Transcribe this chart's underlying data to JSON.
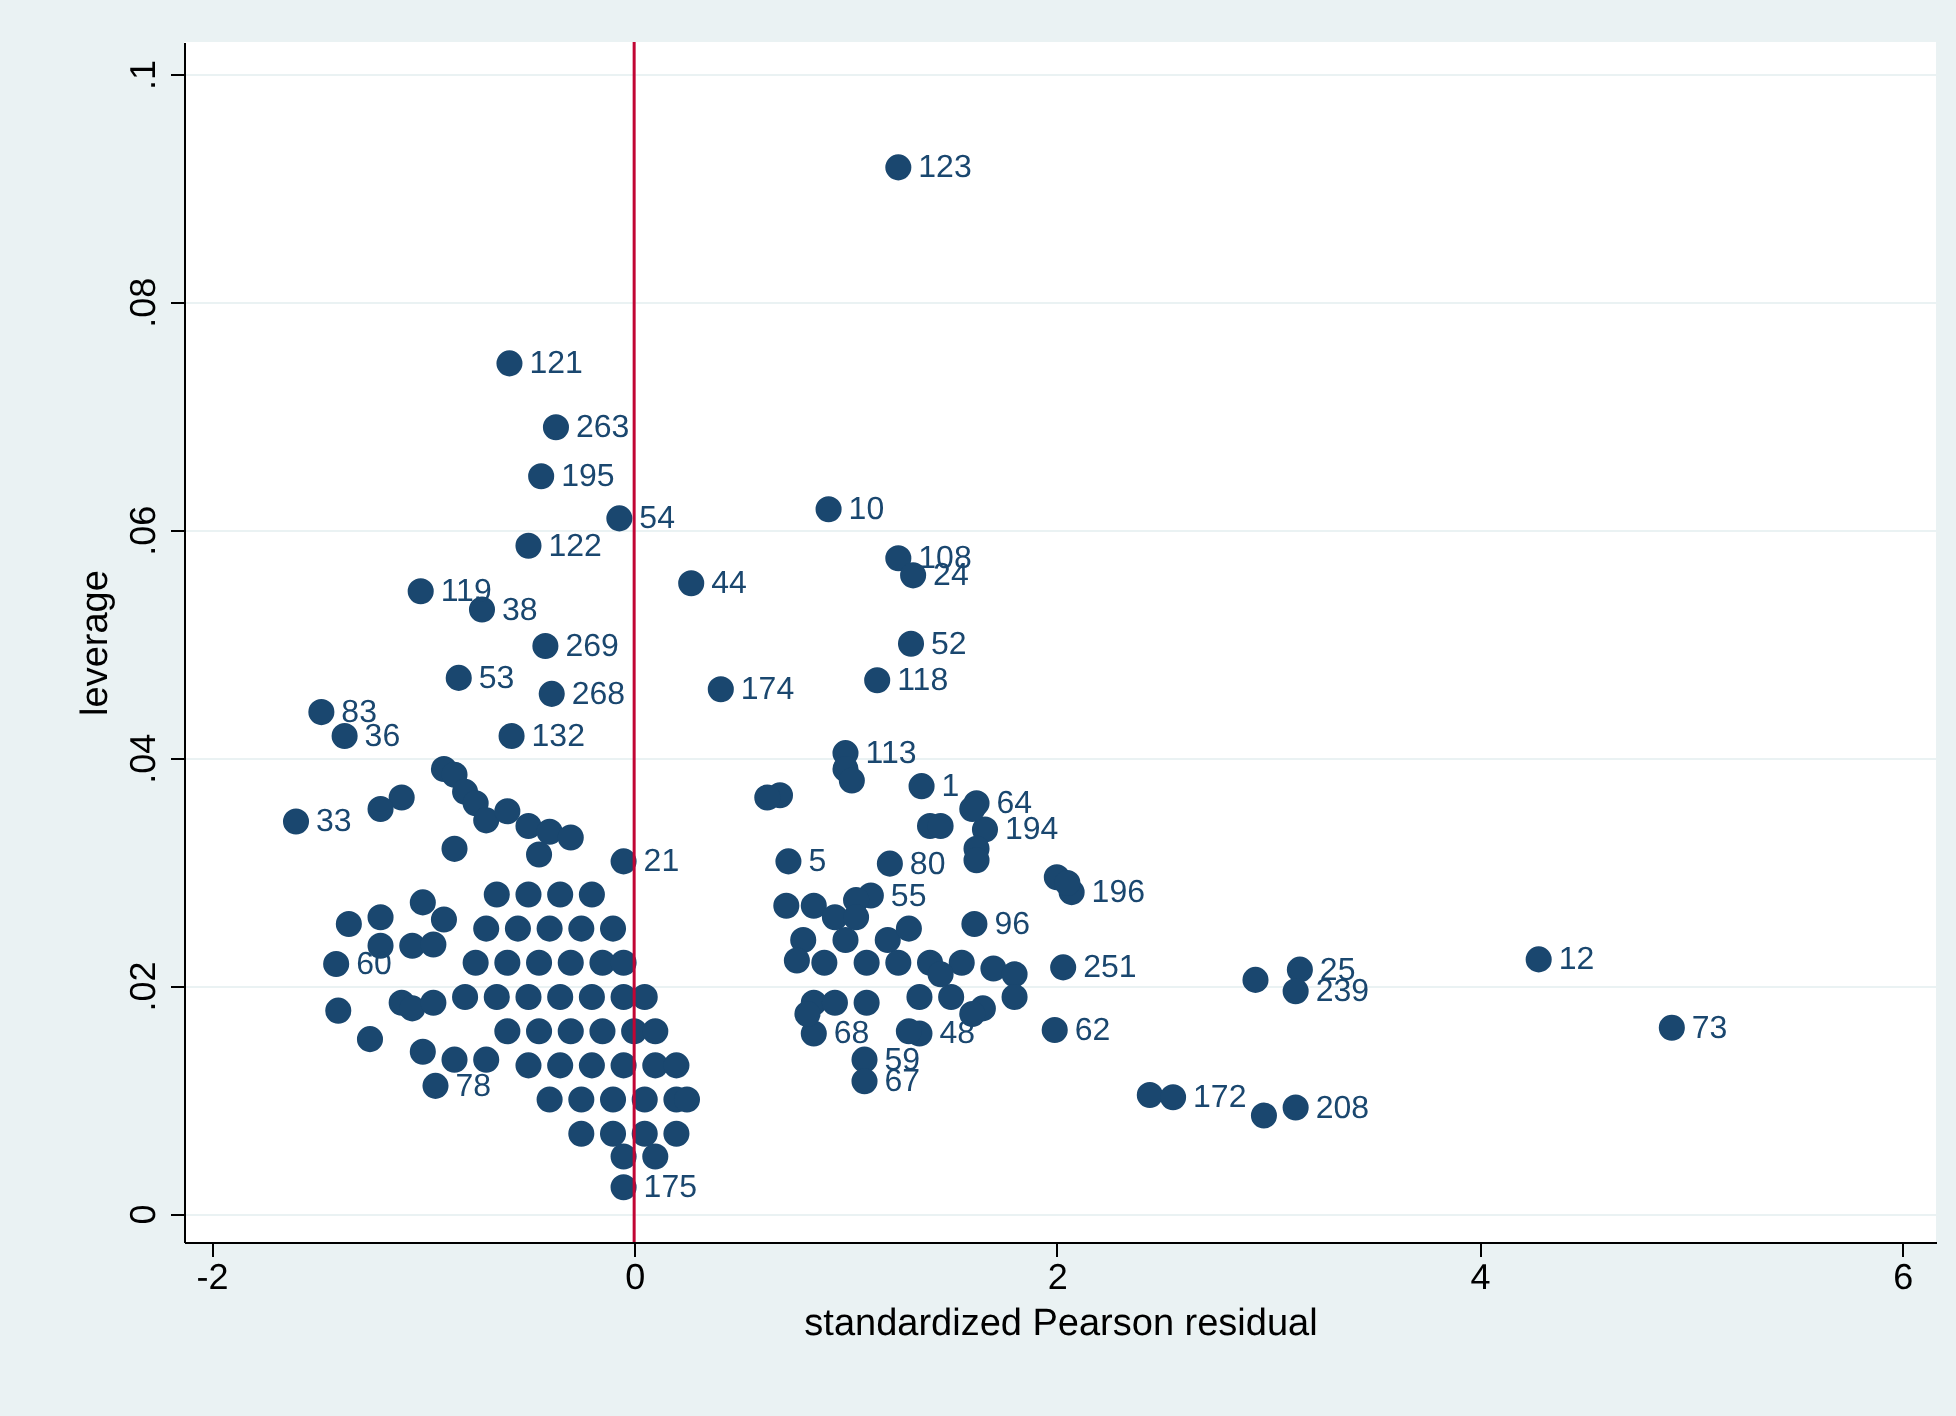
{
  "chart_data": {
    "type": "scatter",
    "xlabel": "standardized Pearson residual",
    "ylabel": "leverage",
    "xlim": [
      -2.13,
      6.16
    ],
    "ylim": [
      -0.0025,
      0.1028
    ],
    "xticks": [
      -2,
      0,
      2,
      4,
      6
    ],
    "yticks": [
      0,
      {
        "value": 0.02,
        "label": ".02"
      },
      {
        "value": 0.04,
        "label": ".04"
      },
      {
        "value": 0.06,
        "label": ".06"
      },
      {
        "value": 0.08,
        "label": ".08"
      },
      {
        "value": 0.1,
        "label": ".1"
      }
    ],
    "grid": "y",
    "marker": "circle",
    "ref_lines": [
      {
        "axis": "x",
        "value": 0,
        "color": "#c10534"
      }
    ],
    "annotations": [
      {
        "text": "123",
        "x": 1.25,
        "y": 0.0918
      },
      {
        "text": "121",
        "x": -0.59,
        "y": 0.0746
      },
      {
        "text": "263",
        "x": -0.37,
        "y": 0.069
      },
      {
        "text": "195",
        "x": -0.44,
        "y": 0.0647
      },
      {
        "text": "54",
        "x": -0.07,
        "y": 0.061
      },
      {
        "text": "10",
        "x": 0.92,
        "y": 0.0618
      },
      {
        "text": "108",
        "x": 1.25,
        "y": 0.0575
      },
      {
        "text": "24",
        "x": 1.32,
        "y": 0.056
      },
      {
        "text": "122",
        "x": -0.5,
        "y": 0.0586
      },
      {
        "text": "119",
        "x": -1.01,
        "y": 0.0546
      },
      {
        "text": "38",
        "x": -0.72,
        "y": 0.053
      },
      {
        "text": "44",
        "x": 0.27,
        "y": 0.0553
      },
      {
        "text": "269",
        "x": -0.42,
        "y": 0.0498
      },
      {
        "text": "52",
        "x": 1.31,
        "y": 0.05
      },
      {
        "text": "53",
        "x": -0.83,
        "y": 0.047
      },
      {
        "text": "268",
        "x": -0.39,
        "y": 0.0456
      },
      {
        "text": "118",
        "x": 1.15,
        "y": 0.0468
      },
      {
        "text": "174",
        "x": 0.41,
        "y": 0.046
      },
      {
        "text": "83",
        "x": -1.48,
        "y": 0.044
      },
      {
        "text": "36",
        "x": -1.37,
        "y": 0.0419
      },
      {
        "text": "132",
        "x": -0.58,
        "y": 0.0419
      },
      {
        "text": "33",
        "x": -1.6,
        "y": 0.0344
      },
      {
        "text": "21",
        "x": -0.05,
        "y": 0.0309
      },
      {
        "text": "175",
        "x": -0.05,
        "y": 0.0023
      },
      {
        "text": "60",
        "x": -1.41,
        "y": 0.0219
      },
      {
        "text": "78",
        "x": -0.94,
        "y": 0.0112
      },
      {
        "text": "5",
        "x": 0.73,
        "y": 0.0309
      },
      {
        "text": "80",
        "x": 1.21,
        "y": 0.0307
      },
      {
        "text": "12",
        "x": 4.28,
        "y": 0.0223
      },
      {
        "text": "73",
        "x": 4.91,
        "y": 0.0163
      },
      {
        "text": "25",
        "x": 3.15,
        "y": 0.0214
      },
      {
        "text": "239",
        "x": 3.13,
        "y": 0.0195
      },
      {
        "text": "62",
        "x": 1.99,
        "y": 0.0161
      },
      {
        "text": "251",
        "x": 2.03,
        "y": 0.0216
      },
      {
        "text": "196",
        "x": 2.07,
        "y": 0.0282
      },
      {
        "text": "64",
        "x": 1.62,
        "y": 0.036
      },
      {
        "text": "194",
        "x": 1.66,
        "y": 0.0337
      },
      {
        "text": "113",
        "x": 1.0,
        "y": 0.0404
      },
      {
        "text": "1",
        "x": 1.36,
        "y": 0.0375
      },
      {
        "text": "96",
        "x": 1.61,
        "y": 0.0254
      },
      {
        "text": "59",
        "x": 1.09,
        "y": 0.0135
      },
      {
        "text": "67",
        "x": 1.09,
        "y": 0.0116
      },
      {
        "text": "172",
        "x": 2.55,
        "y": 0.0102
      },
      {
        "text": "208",
        "x": 3.13,
        "y": 0.0093
      },
      {
        "text": "55",
        "x": 1.12,
        "y": 0.0279
      },
      {
        "text": "48",
        "x": 1.35,
        "y": 0.0158
      },
      {
        "text": "68",
        "x": 0.85,
        "y": 0.0158
      }
    ],
    "series": [
      {
        "color": "#1a476f",
        "x": [
          1.25,
          -0.59,
          -0.37,
          -0.44,
          -0.07,
          0.92,
          1.25,
          1.32,
          -0.5,
          -1.01,
          -0.72,
          0.27,
          -0.42,
          1.31,
          -0.83,
          -0.39,
          1.15,
          0.41,
          -1.48,
          -1.37,
          -0.58,
          -1.6,
          -0.05,
          -0.05,
          -1.41,
          -0.94,
          0.73,
          1.21,
          4.28,
          4.91,
          3.15,
          3.13,
          2.94,
          1.99,
          2.03,
          2.07,
          1.62,
          1.66,
          1.0,
          1.36,
          0.69,
          1.61,
          1.09,
          1.09,
          2.44,
          2.55,
          2.98,
          3.13,
          1.12,
          1.35,
          0.85,
          -1.35,
          -1.2,
          -1.0,
          -0.9,
          -1.2,
          -1.05,
          -0.95,
          -1.4,
          -1.25,
          -1.1,
          -1.05,
          -0.95,
          -1.0,
          -0.85,
          -0.7,
          -1.1,
          -1.2,
          -0.9,
          -0.85,
          -0.8,
          -0.75,
          -0.7,
          -0.6,
          -0.5,
          -0.4,
          -0.3,
          -0.45,
          -0.85,
          -0.65,
          -0.5,
          -0.35,
          -0.2,
          -0.7,
          -0.55,
          -0.4,
          -0.25,
          -0.1,
          -0.75,
          -0.6,
          -0.45,
          -0.3,
          -0.15,
          -0.05,
          -0.8,
          -0.65,
          -0.5,
          -0.35,
          -0.2,
          -0.05,
          0.05,
          -0.6,
          -0.45,
          -0.3,
          -0.15,
          0.0,
          0.1,
          -0.5,
          -0.35,
          -0.2,
          -0.05,
          0.1,
          0.2,
          -0.4,
          -0.25,
          -0.1,
          0.05,
          0.2,
          0.25,
          -0.25,
          -0.1,
          0.05,
          0.2,
          -0.05,
          0.1,
          0.72,
          0.85,
          0.95,
          1.05,
          0.8,
          1.0,
          1.2,
          1.3,
          0.77,
          0.9,
          1.1,
          1.25,
          1.4,
          1.55,
          1.7,
          1.8,
          1.35,
          1.5,
          1.65,
          1.8,
          0.85,
          0.95,
          1.1,
          0.82,
          1.3,
          1.6,
          1.0,
          1.03,
          1.4,
          1.45,
          1.62,
          1.62,
          2.0,
          2.05,
          0.63,
          1.6,
          1.05,
          1.45
        ],
        "values": [
          0.0918,
          0.0746,
          0.069,
          0.0647,
          0.061,
          0.0618,
          0.0575,
          0.056,
          0.0586,
          0.0546,
          0.053,
          0.0553,
          0.0498,
          0.05,
          0.047,
          0.0456,
          0.0468,
          0.046,
          0.044,
          0.0419,
          0.0419,
          0.0344,
          0.0309,
          0.0023,
          0.0219,
          0.0112,
          0.0309,
          0.0307,
          0.0223,
          0.0163,
          0.0214,
          0.0195,
          0.0205,
          0.0161,
          0.0216,
          0.0282,
          0.036,
          0.0337,
          0.0404,
          0.0375,
          0.0367,
          0.0254,
          0.0135,
          0.0116,
          0.0104,
          0.0102,
          0.0086,
          0.0093,
          0.0279,
          0.0158,
          0.0158,
          0.0254,
          0.026,
          0.0273,
          0.0258,
          0.0235,
          0.0235,
          0.0236,
          0.0178,
          0.0153,
          0.0185,
          0.018,
          0.0185,
          0.0142,
          0.0135,
          0.0135,
          0.0365,
          0.0355,
          0.039,
          0.0385,
          0.037,
          0.036,
          0.0345,
          0.0353,
          0.034,
          0.0335,
          0.033,
          0.0315,
          0.032,
          0.028,
          0.028,
          0.028,
          0.028,
          0.025,
          0.025,
          0.025,
          0.025,
          0.025,
          0.022,
          0.022,
          0.022,
          0.022,
          0.022,
          0.022,
          0.019,
          0.019,
          0.019,
          0.019,
          0.019,
          0.019,
          0.019,
          0.016,
          0.016,
          0.016,
          0.016,
          0.016,
          0.016,
          0.013,
          0.013,
          0.013,
          0.013,
          0.013,
          0.013,
          0.01,
          0.01,
          0.01,
          0.01,
          0.01,
          0.01,
          0.007,
          0.007,
          0.007,
          0.007,
          0.005,
          0.005,
          0.027,
          0.027,
          0.026,
          0.0275,
          0.024,
          0.024,
          0.024,
          0.025,
          0.0222,
          0.022,
          0.022,
          0.022,
          0.022,
          0.022,
          0.0215,
          0.021,
          0.019,
          0.019,
          0.018,
          0.019,
          0.0185,
          0.0185,
          0.0185,
          0.0175,
          0.016,
          0.0175,
          0.039,
          0.038,
          0.034,
          0.034,
          0.032,
          0.031,
          0.0295,
          0.029,
          0.0365,
          0.0355,
          0.026,
          0.021
        ]
      }
    ]
  }
}
